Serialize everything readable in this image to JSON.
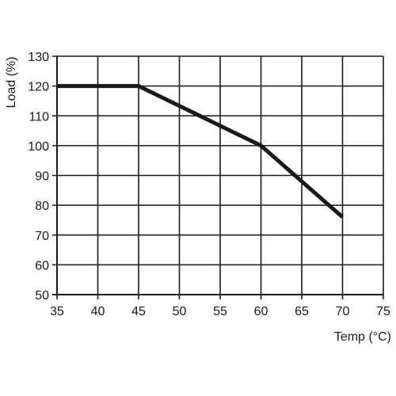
{
  "chart_data": {
    "type": "line",
    "xlabel": "Temp (°C)",
    "ylabel": "Load (%)",
    "xlim": [
      35,
      75
    ],
    "ylim": [
      50,
      130
    ],
    "x_ticks": [
      35,
      40,
      45,
      50,
      55,
      60,
      65,
      70,
      75
    ],
    "y_ticks": [
      50,
      60,
      70,
      80,
      90,
      100,
      110,
      120,
      130
    ],
    "grid": true,
    "series": [
      {
        "x": [
          35,
          45,
          60,
          70
        ],
        "y": [
          120,
          120,
          100,
          76
        ]
      }
    ],
    "colors": {
      "line": "#1a1a1a",
      "grid": "#1a1a1a"
    }
  }
}
